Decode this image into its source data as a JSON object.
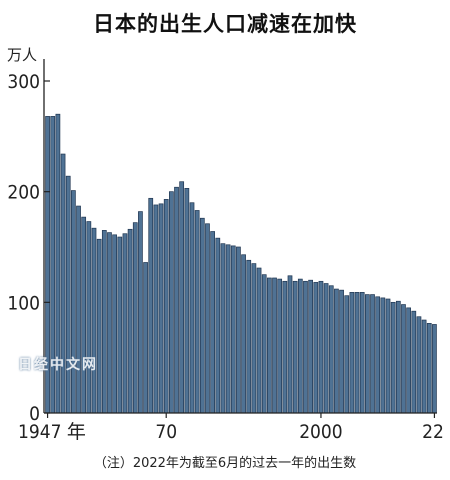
{
  "title": "日本的出生人口减速在加快",
  "note": "（注）2022年为截至6月的过去一年的出生数",
  "watermark": "日经中文网",
  "chart_data": {
    "type": "bar",
    "title": "日本的出生人口减速在加快",
    "unit_label": "万人",
    "ylim": [
      0,
      300
    ],
    "yticks": [
      0,
      100,
      200,
      300
    ],
    "grid": false,
    "x_tick_labels": [
      {
        "year": 1947,
        "label": "1947 年"
      },
      {
        "year": 1970,
        "label": "70"
      },
      {
        "year": 2000,
        "label": "2000"
      },
      {
        "year": 2022,
        "label": "22"
      }
    ],
    "colors": {
      "bar": "#4f7294",
      "bar_edge": "#1f3550",
      "axis": "#222222"
    },
    "x": [
      1947,
      1948,
      1949,
      1950,
      1951,
      1952,
      1953,
      1954,
      1955,
      1956,
      1957,
      1958,
      1959,
      1960,
      1961,
      1962,
      1963,
      1964,
      1965,
      1966,
      1967,
      1968,
      1969,
      1970,
      1971,
      1972,
      1973,
      1974,
      1975,
      1976,
      1977,
      1978,
      1979,
      1980,
      1981,
      1982,
      1983,
      1984,
      1985,
      1986,
      1987,
      1988,
      1989,
      1990,
      1991,
      1992,
      1993,
      1994,
      1995,
      1996,
      1997,
      1998,
      1999,
      2000,
      2001,
      2002,
      2003,
      2004,
      2005,
      2006,
      2007,
      2008,
      2009,
      2010,
      2011,
      2012,
      2013,
      2014,
      2015,
      2016,
      2017,
      2018,
      2019,
      2020,
      2021,
      2022
    ],
    "values": [
      268,
      268,
      270,
      234,
      214,
      201,
      187,
      177,
      173,
      167,
      157,
      165,
      163,
      161,
      159,
      162,
      166,
      172,
      182,
      136,
      194,
      188,
      189,
      193,
      200,
      204,
      209,
      203,
      190,
      183,
      176,
      171,
      164,
      158,
      153,
      152,
      151,
      150,
      143,
      138,
      135,
      131,
      125,
      122,
      122,
      121,
      119,
      124,
      119,
      121,
      119,
      120,
      118,
      119,
      117,
      115,
      112,
      111,
      106,
      109,
      109,
      109,
      107,
      107,
      105,
      104,
      103,
      100,
      101,
      98,
      95,
      92,
      87,
      84,
      81,
      80
    ]
  }
}
